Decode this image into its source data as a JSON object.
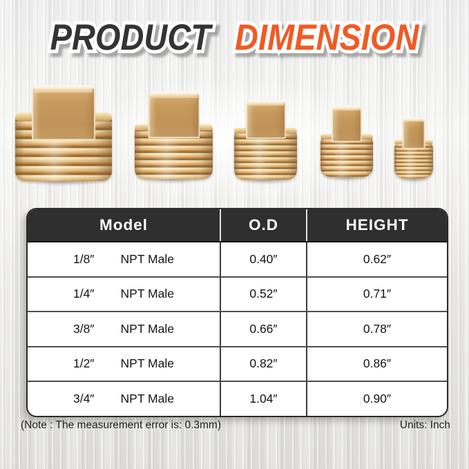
{
  "title": {
    "word1": "PRODUCT",
    "word2": "DIMENSION"
  },
  "colors": {
    "accent_orange": "#f15a24",
    "title_dark": "#343434",
    "table_header_bg": "#2f2f2f",
    "brass_light": "#f3daa5",
    "brass_dark": "#8d5f27"
  },
  "table": {
    "headers": [
      "Model",
      "O.D",
      "HEIGHT"
    ],
    "rows": [
      {
        "size": "1/8″",
        "type": "NPT Male",
        "od": "0.40″",
        "height": "0.62″"
      },
      {
        "size": "1/4″",
        "type": "NPT Male",
        "od": "0.52″",
        "height": "0.71″"
      },
      {
        "size": "3/8″",
        "type": "NPT Male",
        "od": "0.66″",
        "height": "0.78″"
      },
      {
        "size": "1/2″",
        "type": "NPT Male",
        "od": "0.82″",
        "height": "0.86″"
      },
      {
        "size": "3/4″",
        "type": "NPT Male",
        "od": "1.04″",
        "height": "0.90″"
      }
    ]
  },
  "footer": {
    "note": "(Note : The measurement error is: 0.3mm)",
    "units": "Units: Inch"
  }
}
